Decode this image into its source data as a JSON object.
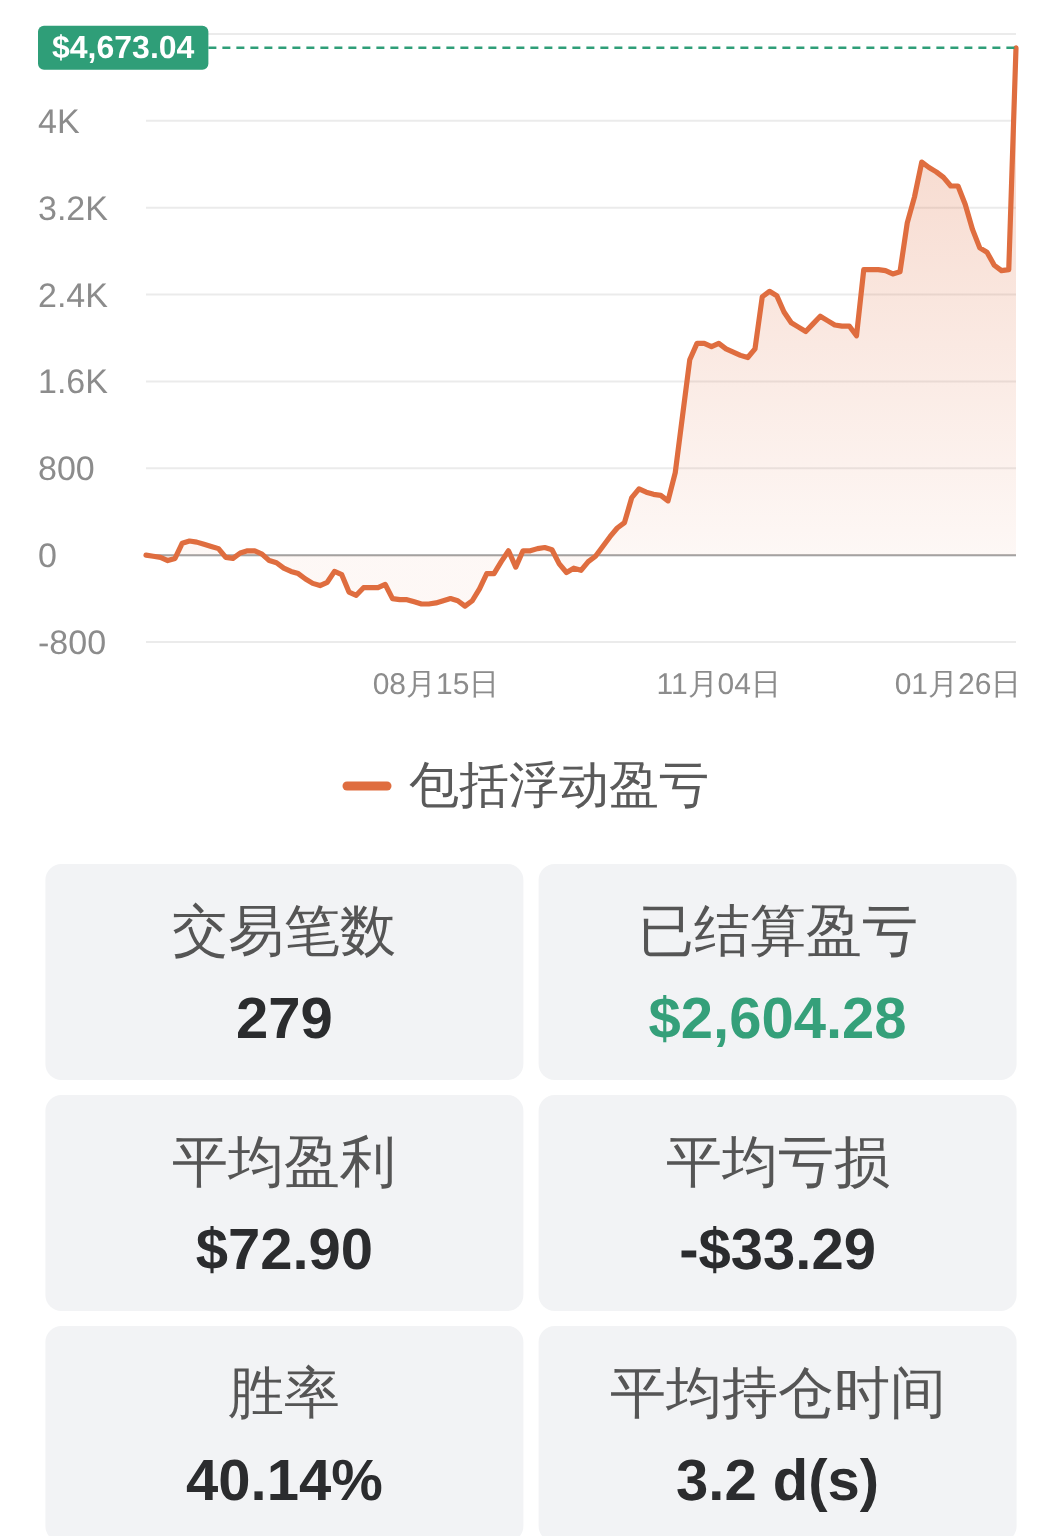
{
  "chart_data": [
    {
      "type": "area",
      "categories": [
        null,
        null,
        null,
        null,
        null,
        null,
        null,
        null,
        null,
        null,
        null,
        null,
        null,
        null,
        null,
        null,
        null,
        null,
        null,
        null,
        null,
        null,
        null,
        null,
        null,
        null,
        null,
        null,
        null,
        null,
        null,
        null,
        null,
        null,
        null,
        null,
        null,
        null,
        null,
        null,
        "08月15日",
        null,
        null,
        null,
        null,
        null,
        null,
        null,
        null,
        null,
        null,
        null,
        null,
        null,
        null,
        null,
        null,
        null,
        null,
        null,
        null,
        null,
        null,
        null,
        null,
        null,
        null,
        null,
        null,
        null,
        null,
        null,
        null,
        null,
        null,
        null,
        null,
        null,
        null,
        "11月04日",
        null,
        null,
        null,
        null,
        null,
        null,
        null,
        null,
        null,
        null,
        null,
        null,
        null,
        null,
        null,
        null,
        null,
        null,
        null,
        null,
        null,
        null,
        null,
        null,
        null,
        null,
        null,
        null,
        null,
        null,
        null,
        null,
        "01月26日",
        null,
        null,
        null,
        null,
        null,
        null,
        null,
        null
      ],
      "series": [
        {
          "name": "包括浮动盈亏",
          "color": "#df6d3f",
          "values": [
            0,
            -10,
            -20,
            -50,
            -30,
            110,
            130,
            120,
            100,
            80,
            60,
            -20,
            -30,
            20,
            40,
            40,
            10,
            -50,
            -70,
            -120,
            -150,
            -170,
            -220,
            -260,
            -280,
            -250,
            -150,
            -180,
            -340,
            -370,
            -300,
            -300,
            -300,
            -270,
            -400,
            -410,
            -410,
            -430,
            -450,
            -450,
            -440,
            -420,
            -400,
            -420,
            -470,
            -420,
            -310,
            -170,
            -170,
            -60,
            40,
            -110,
            40,
            40,
            60,
            70,
            50,
            -80,
            -160,
            -120,
            -140,
            -60,
            -10,
            80,
            170,
            250,
            300,
            530,
            610,
            580,
            560,
            550,
            500,
            760,
            1280,
            1800,
            1950,
            1950,
            1920,
            1950,
            1900,
            1870,
            1840,
            1820,
            1900,
            2380,
            2430,
            2390,
            2240,
            2140,
            2100,
            2060,
            2130,
            2200,
            2160,
            2120,
            2110,
            2110,
            2020,
            2630,
            2630,
            2630,
            2620,
            2590,
            2610,
            3060,
            3300,
            3620,
            3570,
            3530,
            3480,
            3400,
            3400,
            3230,
            3000,
            2830,
            2790,
            2670,
            2620,
            2630,
            4673.04
          ]
        }
      ],
      "ylim": [
        -800,
        4800
      ],
      "yticks": [
        -800,
        0,
        800,
        {
          "value": 1600,
          "label": "1.6K"
        },
        {
          "value": 2400,
          "label": "2.4K"
        },
        {
          "value": 3200,
          "label": "3.2K"
        },
        {
          "value": 4000,
          "label": "4K"
        },
        {
          "value": 4800,
          "label": null
        }
      ],
      "grid": "y",
      "legend": "bottom",
      "ref_lines": [
        {
          "axis": "y",
          "value": 4673.04,
          "label": "$4,673.04",
          "color": "#2f9e78",
          "line_style": "dashed"
        }
      ]
    },
    {
      "type": "other",
      "categories": [
        "交易笔数",
        "已结算盈亏",
        "平均盈利",
        "平均亏损",
        "胜率",
        "平均持仓时间"
      ],
      "value_labels": [
        "279",
        "$2,604.28",
        "$72.90",
        "-$33.29",
        "40.14%",
        "3.2 d(s)"
      ],
      "colors": [
        "#2b2c2e",
        "#35a07a",
        "#2b2c2e",
        "#2b2c2e",
        "#2b2c2e",
        "#2b2c2e"
      ]
    }
  ]
}
